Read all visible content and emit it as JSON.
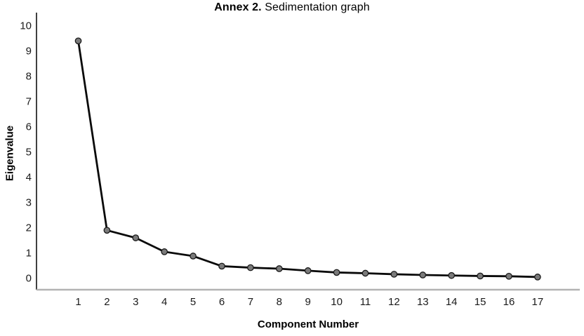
{
  "figure": {
    "title_bold": "Annex 2.",
    "title_rest": " Sedimentation graph",
    "xlabel": "Component Number",
    "ylabel": "Eigenvalue"
  },
  "chart_data": {
    "type": "line",
    "title": "Annex 2. Sedimentation graph",
    "xlabel": "Component Number",
    "ylabel": "Eigenvalue",
    "categories": [
      1,
      2,
      3,
      4,
      5,
      6,
      7,
      8,
      9,
      10,
      11,
      12,
      13,
      14,
      15,
      16,
      17
    ],
    "values": [
      9.4,
      1.9,
      1.6,
      1.05,
      0.88,
      0.48,
      0.42,
      0.38,
      0.3,
      0.23,
      0.2,
      0.16,
      0.13,
      0.11,
      0.09,
      0.08,
      0.05
    ],
    "ylim": [
      0,
      10
    ],
    "yticks": [
      0,
      1,
      2,
      3,
      4,
      5,
      6,
      7,
      8,
      9,
      10
    ],
    "grid": false,
    "legend": false,
    "line_color": "#0a0a0a",
    "marker_fill": "#7a7a7a",
    "marker_stroke": "#1a1a1a",
    "yaxis_color": "#2b2b2b",
    "baseline_color": "#b3b3b3",
    "tick_label_color": "#1a1a1a"
  }
}
